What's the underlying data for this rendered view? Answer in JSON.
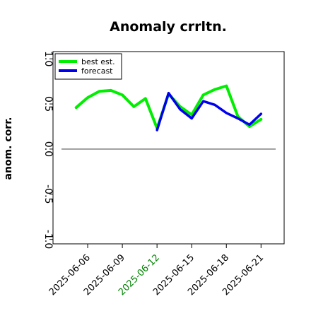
{
  "chart_data": {
    "type": "line",
    "title": "Anomaly crrltn.",
    "ylabel": "anom. corr.",
    "xlabel": "",
    "ylim": [
      -1.05,
      1.08
    ],
    "xlim": [
      "2025-06-03",
      "2025-06-23"
    ],
    "yticks": [
      {
        "value": -1.0,
        "label": "-1.0"
      },
      {
        "value": -0.5,
        "label": "-0.5"
      },
      {
        "value": 0.0,
        "label": "0.0"
      },
      {
        "value": 0.5,
        "label": "0.5"
      },
      {
        "value": 1.0,
        "label": "1.0"
      }
    ],
    "xticks": [
      {
        "date": "2025-06-06",
        "label": "2025-06-06",
        "color": "#000000"
      },
      {
        "date": "2025-06-09",
        "label": "2025-06-09",
        "color": "#000000"
      },
      {
        "date": "2025-06-12",
        "label": "2025-06-12",
        "color": "#008000"
      },
      {
        "date": "2025-06-15",
        "label": "2025-06-15",
        "color": "#000000"
      },
      {
        "date": "2025-06-18",
        "label": "2025-06-18",
        "color": "#000000"
      },
      {
        "date": "2025-06-21",
        "label": "2025-06-21",
        "color": "#000000"
      }
    ],
    "reference_line": {
      "y": 0.0,
      "color": "#555555"
    },
    "grid": false,
    "legend": {
      "location": "top-left"
    },
    "series": [
      {
        "name": "best est.",
        "color": "#00ee00",
        "x": [
          "2025-06-05",
          "2025-06-06",
          "2025-06-07",
          "2025-06-08",
          "2025-06-09",
          "2025-06-10",
          "2025-06-11",
          "2025-06-12",
          "2025-06-13",
          "2025-06-14",
          "2025-06-15",
          "2025-06-16",
          "2025-06-17",
          "2025-06-18",
          "2025-06-19",
          "2025-06-20",
          "2025-06-21"
        ],
        "values": [
          0.46,
          0.57,
          0.64,
          0.65,
          0.6,
          0.47,
          0.56,
          0.23,
          0.61,
          0.47,
          0.38,
          0.6,
          0.66,
          0.7,
          0.36,
          0.25,
          0.33
        ]
      },
      {
        "name": "forecast",
        "color": "#0000ee",
        "x": [
          "2025-06-12",
          "2025-06-13",
          "2025-06-14",
          "2025-06-15",
          "2025-06-16",
          "2025-06-17",
          "2025-06-18",
          "2025-06-19",
          "2025-06-20",
          "2025-06-21"
        ],
        "values": [
          0.21,
          0.62,
          0.44,
          0.34,
          0.53,
          0.49,
          0.4,
          0.34,
          0.27,
          0.39
        ]
      }
    ]
  }
}
